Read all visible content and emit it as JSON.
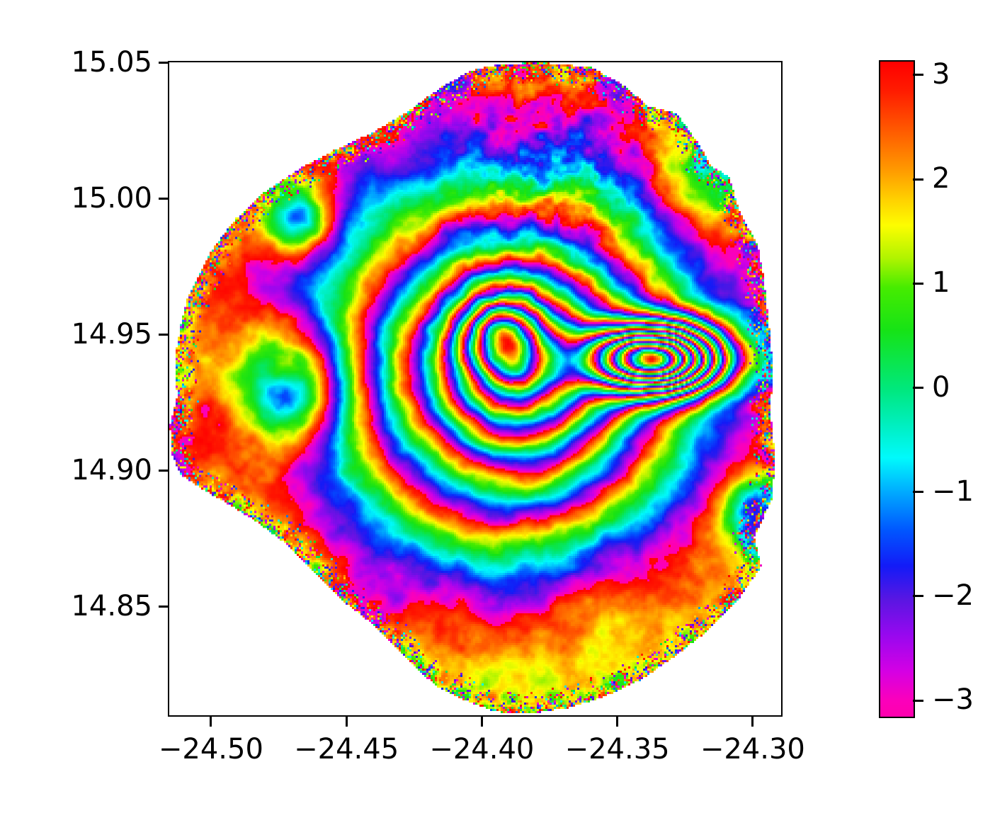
{
  "figure": {
    "background": "#ffffff",
    "kind": "matplotlib-style interferogram figure"
  },
  "chart_data": {
    "type": "heatmap",
    "title": "",
    "xlabel": "",
    "ylabel": "",
    "xlim": [
      -24.5154,
      -24.2895
    ],
    "ylim": [
      14.81,
      15.05
    ],
    "grid": false,
    "x_ticks": [
      {
        "value": -24.5,
        "label": "−24.50"
      },
      {
        "value": -24.45,
        "label": "−24.45"
      },
      {
        "value": -24.4,
        "label": "−24.40"
      },
      {
        "value": -24.35,
        "label": "−24.35"
      },
      {
        "value": -24.3,
        "label": "−24.30"
      }
    ],
    "y_ticks": [
      {
        "value": 15.05,
        "label": "15.05"
      },
      {
        "value": 15.0,
        "label": "15.00"
      },
      {
        "value": 14.95,
        "label": "14.95"
      },
      {
        "value": 14.9,
        "label": "14.90"
      },
      {
        "value": 14.85,
        "label": "14.85"
      }
    ],
    "colorbar": {
      "vmin": -3.14159,
      "vmax": 3.14159,
      "ticks": [
        {
          "value": 3,
          "label": "3"
        },
        {
          "value": 2,
          "label": "2"
        },
        {
          "value": 1,
          "label": "1"
        },
        {
          "value": 0,
          "label": "0"
        },
        {
          "value": -1,
          "label": "−1"
        },
        {
          "value": -2,
          "label": "−2"
        },
        {
          "value": -3,
          "label": "−3"
        }
      ]
    },
    "colormap": {
      "name": "rainbow (hsv-like), red at +pi to magenta at -pi",
      "stops": [
        {
          "pos": 0.0,
          "color": "#ff0000"
        },
        {
          "pos": 0.045,
          "color": "#ff1c00"
        },
        {
          "pos": 0.11,
          "color": "#ff5f00"
        },
        {
          "pos": 0.165,
          "color": "#ff9900"
        },
        {
          "pos": 0.21,
          "color": "#ffd000"
        },
        {
          "pos": 0.25,
          "color": "#fdfd00"
        },
        {
          "pos": 0.3,
          "color": "#b0f400"
        },
        {
          "pos": 0.345,
          "color": "#46ec00"
        },
        {
          "pos": 0.41,
          "color": "#16e316"
        },
        {
          "pos": 0.5,
          "color": "#00e87d"
        },
        {
          "pos": 0.555,
          "color": "#00efc0"
        },
        {
          "pos": 0.605,
          "color": "#00fafc"
        },
        {
          "pos": 0.66,
          "color": "#00a6ff"
        },
        {
          "pos": 0.715,
          "color": "#0057ff"
        },
        {
          "pos": 0.77,
          "color": "#131bf7"
        },
        {
          "pos": 0.822,
          "color": "#5a16e2"
        },
        {
          "pos": 0.875,
          "color": "#9708ef"
        },
        {
          "pos": 0.93,
          "color": "#d400e4"
        },
        {
          "pos": 0.975,
          "color": "#fb00bb"
        },
        {
          "pos": 1.0,
          "color": "#ff00ad"
        }
      ]
    },
    "description": "Wrapped InSAR interferogram (phase in radians, ±π) over a roughly circular volcanic island. Concentric deformation fringes surround a center near lon −24.387, lat 14.937, with a very dense fan of fine fringes just east of it near lon −24.336, lat 14.941. Broad red/orange phase covers the west flank with magenta/purple anomaly blobs, a blue/indigo lobe fills the south, chaotic speckle covers the summit-north area, and multicolour decorrelation speckle lines the entire coastline. Background outside the island is white.",
    "field_model": {
      "coastline": [
        [
          -24.3949,
          15.049
        ],
        [
          -24.3792,
          15.05
        ],
        [
          -24.3596,
          15.0482
        ],
        [
          -24.3478,
          15.0417
        ],
        [
          -24.3387,
          15.0339
        ],
        [
          -24.3282,
          15.0313
        ],
        [
          -24.3204,
          15.0208
        ],
        [
          -24.3151,
          15.0117
        ],
        [
          -24.3086,
          15.0078
        ],
        [
          -24.3047,
          14.9948
        ],
        [
          -24.2981,
          14.9831
        ],
        [
          -24.296,
          14.9714
        ],
        [
          -24.2942,
          14.9558
        ],
        [
          -24.2924,
          14.9376
        ],
        [
          -24.2934,
          14.9219
        ],
        [
          -24.2916,
          14.9037
        ],
        [
          -24.2929,
          14.8894
        ],
        [
          -24.2994,
          14.8751
        ],
        [
          -24.2968,
          14.8647
        ],
        [
          -24.306,
          14.8516
        ],
        [
          -24.3164,
          14.8412
        ],
        [
          -24.3282,
          14.8321
        ],
        [
          -24.3413,
          14.823
        ],
        [
          -24.3556,
          14.8165
        ],
        [
          -24.3687,
          14.8126
        ],
        [
          -24.3831,
          14.8105
        ],
        [
          -24.3949,
          14.8113
        ],
        [
          -24.4066,
          14.8157
        ],
        [
          -24.4171,
          14.8209
        ],
        [
          -24.4236,
          14.8269
        ],
        [
          -24.4315,
          14.8347
        ],
        [
          -24.4406,
          14.8438
        ],
        [
          -24.4524,
          14.8529
        ],
        [
          -24.4629,
          14.8633
        ],
        [
          -24.4733,
          14.8737
        ],
        [
          -24.4838,
          14.8815
        ],
        [
          -24.4942,
          14.888
        ],
        [
          -24.5034,
          14.8932
        ],
        [
          -24.5112,
          14.8984
        ],
        [
          -24.5146,
          14.9062
        ],
        [
          -24.5151,
          14.9167
        ],
        [
          -24.5125,
          14.9271
        ],
        [
          -24.5133,
          14.9414
        ],
        [
          -24.511,
          14.9545
        ],
        [
          -24.5086,
          14.9636
        ],
        [
          -24.4995,
          14.9813
        ],
        [
          -24.4911,
          14.9922
        ],
        [
          -24.4798,
          15.0026
        ],
        [
          -24.4681,
          15.0104
        ],
        [
          -24.455,
          15.0174
        ],
        [
          -24.4406,
          15.024
        ],
        [
          -24.4275,
          15.0318
        ],
        [
          -24.4144,
          15.0412
        ],
        [
          -24.404,
          15.0469
        ]
      ],
      "ring_sources": [
        {
          "lon": -24.387,
          "lat": 14.937,
          "cycles": 5.2,
          "radius": 0.045,
          "exp": 1.4,
          "sx": 1.0,
          "sy": 1.0
        },
        {
          "lon": -24.336,
          "lat": 14.941,
          "cycles": 6.5,
          "radius": 0.022,
          "exp": 2.0,
          "sx": 1.0,
          "sy": 1.9
        },
        {
          "lon": -24.393,
          "lat": 14.95,
          "cycles": 1.8,
          "radius": 0.014,
          "exp": 2.0,
          "sx": 1.0,
          "sy": 1.0
        }
      ],
      "anomalies": [
        {
          "lon": -24.47,
          "lat": 14.932,
          "radius": 0.02,
          "rad": -5.7
        },
        {
          "lon": -24.473,
          "lat": 14.937,
          "radius": 0.006,
          "rad": 1.3
        },
        {
          "lon": -24.467,
          "lat": 14.992,
          "radius": 0.012,
          "rad": -4.5
        },
        {
          "lon": -24.372,
          "lat": 14.848,
          "radius": 0.035,
          "rad": -0.9
        },
        {
          "lon": -24.315,
          "lat": 15.008,
          "radius": 0.02,
          "rad": -2.6
        },
        {
          "lon": -24.3,
          "lat": 14.885,
          "radius": 0.012,
          "rad": -3.5
        }
      ],
      "turbulence_patches": [
        {
          "lon": -24.375,
          "lat": 15.012,
          "radius": 0.032,
          "amp": 2.4
        },
        {
          "lon": -24.4,
          "lat": 14.955,
          "radius": 0.02,
          "amp": 1.3
        },
        {
          "lon": -24.34,
          "lat": 14.94,
          "radius": 0.02,
          "amp": 0.8
        }
      ],
      "ramp": {
        "phase0": 1.5,
        "lon_cycles": -0.15,
        "lat_cycles": 0.1
      },
      "noise": {
        "amp": 1.15,
        "scale": 34,
        "octaves": 4,
        "fine_amp": 0.55,
        "fine_scale_mult": 5,
        "edge_band": 0.009,
        "speckle_prob": 0.55
      }
    }
  }
}
